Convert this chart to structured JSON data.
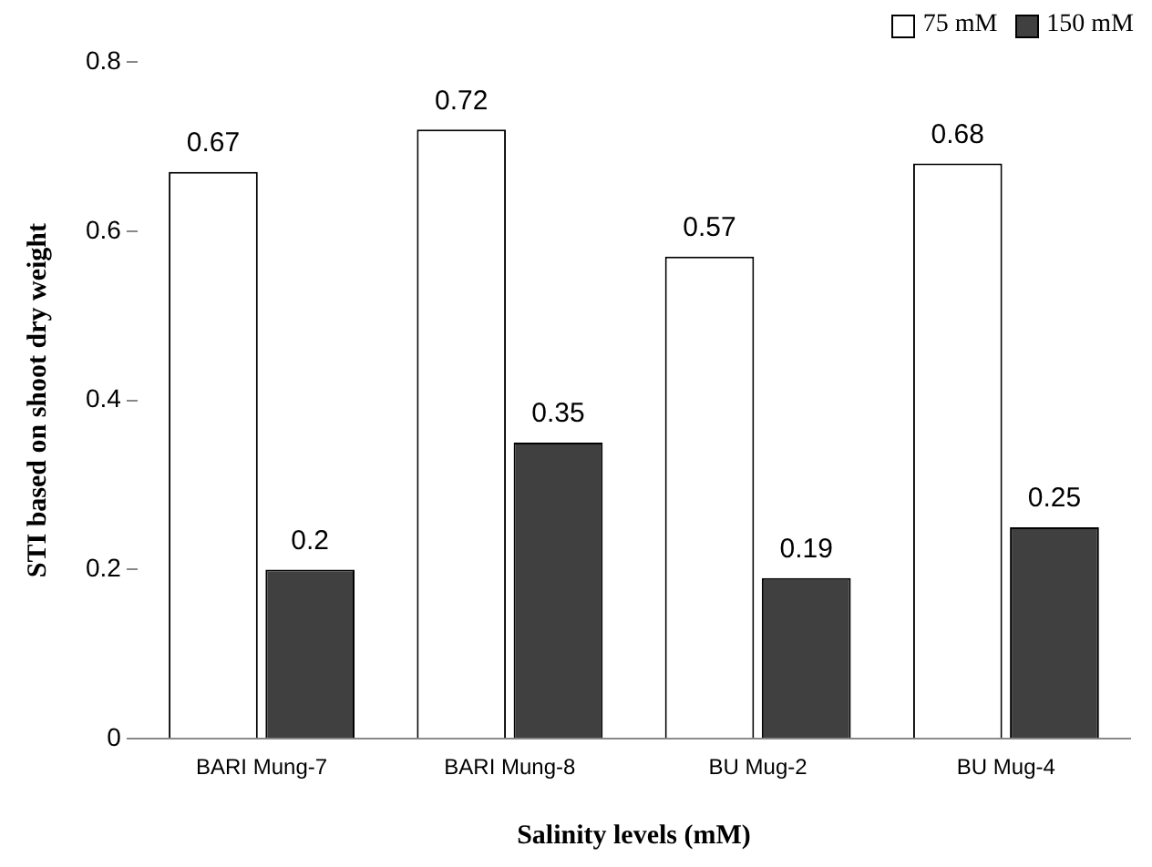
{
  "chart_data": {
    "type": "bar",
    "xlabel": "Salinity levels (mM)",
    "ylabel": "STI based on shoot dry weight",
    "categories": [
      "BARI Mung-7",
      "BARI Mung-8",
      "BU Mug-2",
      "BU Mug-4"
    ],
    "series": [
      {
        "name": "75 mM",
        "color": "#ffffff",
        "values": [
          0.67,
          0.72,
          0.57,
          0.68
        ]
      },
      {
        "name": "150 mM",
        "color": "#404040",
        "values": [
          0.2,
          0.35,
          0.19,
          0.25
        ]
      }
    ],
    "ylim": [
      0,
      0.8
    ],
    "yticks": [
      0,
      0.2,
      0.4,
      0.6,
      0.8
    ],
    "grid": false,
    "legend": "top right",
    "data_labels": true
  }
}
